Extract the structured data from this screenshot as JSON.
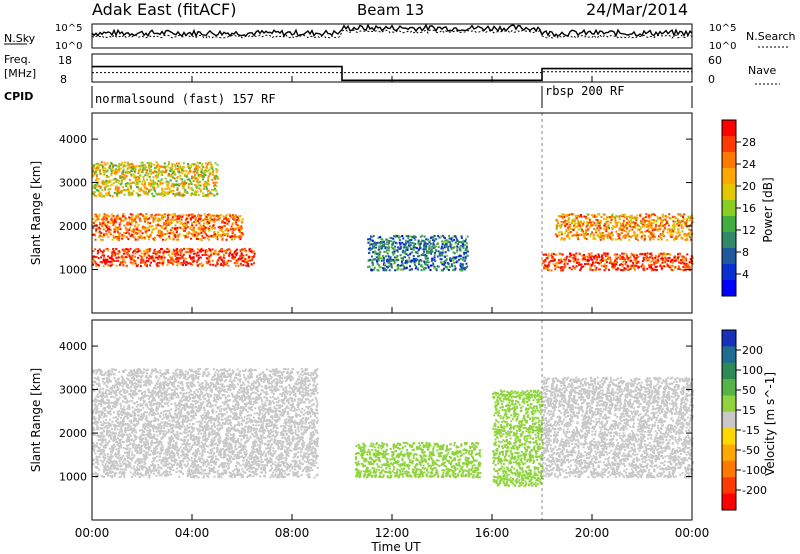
{
  "header": {
    "station": "Adak East (fitACF)",
    "beam": "Beam 13",
    "date": "24/Mar/2014"
  },
  "noise_panel": {
    "left_label": "N.Sky",
    "right_label": "N.Search",
    "ytick_top": "10^5",
    "ytick_bottom": "10^0"
  },
  "freq_panel": {
    "left_label_1": "Freq.",
    "left_label_2": "[MHz]",
    "right_label": "Nave",
    "yticks_left": [
      "18",
      "8"
    ],
    "yticks_right": [
      "60",
      "0"
    ]
  },
  "cpid": {
    "label": "CPID",
    "segments": [
      {
        "start_h": 0,
        "end_h": 18,
        "text": "normalsound (fast) 157 RF"
      },
      {
        "start_h": 18,
        "end_h": 24,
        "text": "rbsp 200 RF"
      }
    ]
  },
  "axes": {
    "xlabel": "Time UT",
    "ylabel": "Slant Range [km]",
    "xticks": [
      "00:00",
      "04:00",
      "08:00",
      "12:00",
      "16:00",
      "20:00",
      "00:00"
    ],
    "yticks": [
      "1000",
      "2000",
      "3000",
      "4000"
    ]
  },
  "power_colorbar": {
    "label": "Power [dB]",
    "ticks": [
      "28",
      "24",
      "20",
      "16",
      "12",
      "8",
      "4"
    ],
    "colors": [
      "#ff0000",
      "#ff3a00",
      "#ff7800",
      "#ffa800",
      "#e3c800",
      "#8ccd22",
      "#3fae3f",
      "#31896a",
      "#1f5a9e",
      "#0a2fd0",
      "#0000ff"
    ]
  },
  "velocity_colorbar": {
    "label": "Velocity [m s^-1]",
    "ticks": [
      "200",
      "100",
      "50",
      "15",
      "-15",
      "-50",
      "-100",
      "-200"
    ],
    "colors": [
      "#1930b8",
      "#1f6b92",
      "#2d8a55",
      "#55b34a",
      "#8fd43c",
      "#c8c8c8",
      "#ffd800",
      "#ffa800",
      "#ff7800",
      "#ff3a00",
      "#ff0000"
    ]
  },
  "chart_data": {
    "type": "heatmap",
    "title": "Adak East (fitACF) Beam 13 24/Mar/2014",
    "xlabel": "Time UT",
    "ylabel": "Slant Range [km]",
    "xlim_hours": [
      0,
      24
    ],
    "ylim_km": [
      0,
      4600
    ],
    "frequency_mhz": [
      {
        "start_h": 0,
        "end_h": 10,
        "value": 13.5
      },
      {
        "start_h": 10,
        "end_h": 18,
        "value": 8.6
      },
      {
        "start_h": 18,
        "end_h": 24,
        "value": 12.8
      }
    ],
    "nave": [
      {
        "start_h": 0,
        "end_h": 18,
        "value": 20
      },
      {
        "start_h": 18,
        "end_h": 24,
        "value": 22
      }
    ],
    "power_regions_db": [
      {
        "start_h": 0,
        "end_h": 6.5,
        "range_km": [
          1100,
          1500
        ],
        "value": 28
      },
      {
        "start_h": 0,
        "end_h": 6,
        "range_km": [
          1700,
          2300
        ],
        "value": 24
      },
      {
        "start_h": 0,
        "end_h": 5,
        "range_km": [
          2700,
          3500
        ],
        "value": 18
      },
      {
        "start_h": 11,
        "end_h": 15,
        "range_km": [
          1000,
          1800
        ],
        "value": 8
      },
      {
        "start_h": 18,
        "end_h": 24,
        "range_km": [
          1000,
          1400
        ],
        "value": 28
      },
      {
        "start_h": 18.5,
        "end_h": 24,
        "range_km": [
          1700,
          2300
        ],
        "value": 22
      }
    ],
    "velocity_regions_ms": [
      {
        "start_h": 0,
        "end_h": 9,
        "range_km": [
          1000,
          3500
        ],
        "value": 0
      },
      {
        "start_h": 10.5,
        "end_h": 15.5,
        "range_km": [
          1000,
          1800
        ],
        "value": 40
      },
      {
        "start_h": 16,
        "end_h": 18,
        "range_km": [
          800,
          3000
        ],
        "value": 40
      },
      {
        "start_h": 18,
        "end_h": 24,
        "range_km": [
          1000,
          3300
        ],
        "value": 0
      }
    ]
  }
}
